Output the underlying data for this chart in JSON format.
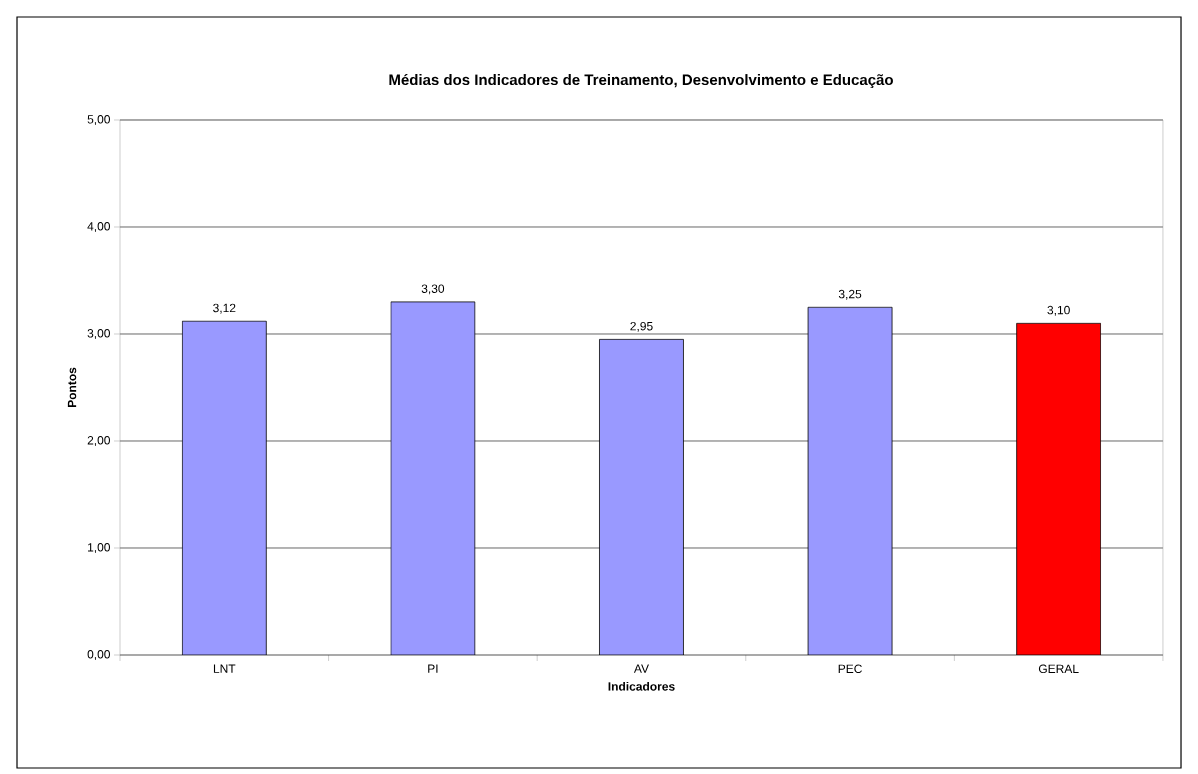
{
  "chart_data": {
    "type": "bar",
    "title": "Médias dos Indicadores de Treinamento, Desenvolvimento e Educação",
    "xlabel": "Indicadores",
    "ylabel": "Pontos",
    "categories": [
      "LNT",
      "PI",
      "AV",
      "PEC",
      "GERAL"
    ],
    "values": [
      3.12,
      3.3,
      2.95,
      3.25,
      3.1
    ],
    "colors": [
      "#9999ff",
      "#9999ff",
      "#9999ff",
      "#9999ff",
      "#ff0000"
    ],
    "value_labels": [
      "3,12",
      "3,30",
      "2,95",
      "3,25",
      "3,10"
    ],
    "ylim": [
      0,
      5
    ],
    "yticks": [
      {
        "value": 0,
        "label": "0,00"
      },
      {
        "value": 1,
        "label": "1,00"
      },
      {
        "value": 2,
        "label": "2,00"
      },
      {
        "value": 3,
        "label": "3,00"
      },
      {
        "value": 4,
        "label": "4,00"
      },
      {
        "value": 5,
        "label": "5,00"
      }
    ],
    "grid": "y"
  }
}
